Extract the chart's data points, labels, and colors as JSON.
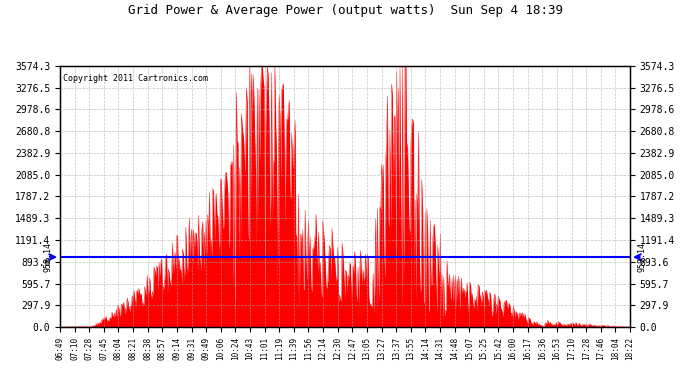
{
  "title": "Grid Power & Average Power (output watts)  Sun Sep 4 18:39",
  "copyright": "Copyright 2011 Cartronics.com",
  "y_ticks": [
    0.0,
    297.9,
    595.7,
    893.6,
    1191.4,
    1489.3,
    1787.2,
    2085.0,
    2382.9,
    2680.8,
    2978.6,
    3276.5,
    3574.3
  ],
  "avg_line_value": 958.14,
  "avg_line_label": "958.14",
  "x_labels": [
    "06:49",
    "07:10",
    "07:28",
    "07:45",
    "08:04",
    "08:21",
    "08:38",
    "08:57",
    "09:14",
    "09:31",
    "09:49",
    "10:06",
    "10:24",
    "10:43",
    "11:01",
    "11:19",
    "11:39",
    "11:56",
    "12:14",
    "12:30",
    "12:47",
    "13:05",
    "13:27",
    "13:37",
    "13:55",
    "14:14",
    "14:31",
    "14:48",
    "15:07",
    "15:25",
    "15:42",
    "16:00",
    "16:17",
    "16:36",
    "16:53",
    "17:10",
    "17:28",
    "17:46",
    "18:04",
    "18:22"
  ],
  "background_color": "#ffffff",
  "fill_color": "#ff0000",
  "line_color": "#ff0000",
  "avg_line_color": "#0000ff",
  "grid_color": "#aaaaaa",
  "title_color": "#000000",
  "border_color": "#000000"
}
